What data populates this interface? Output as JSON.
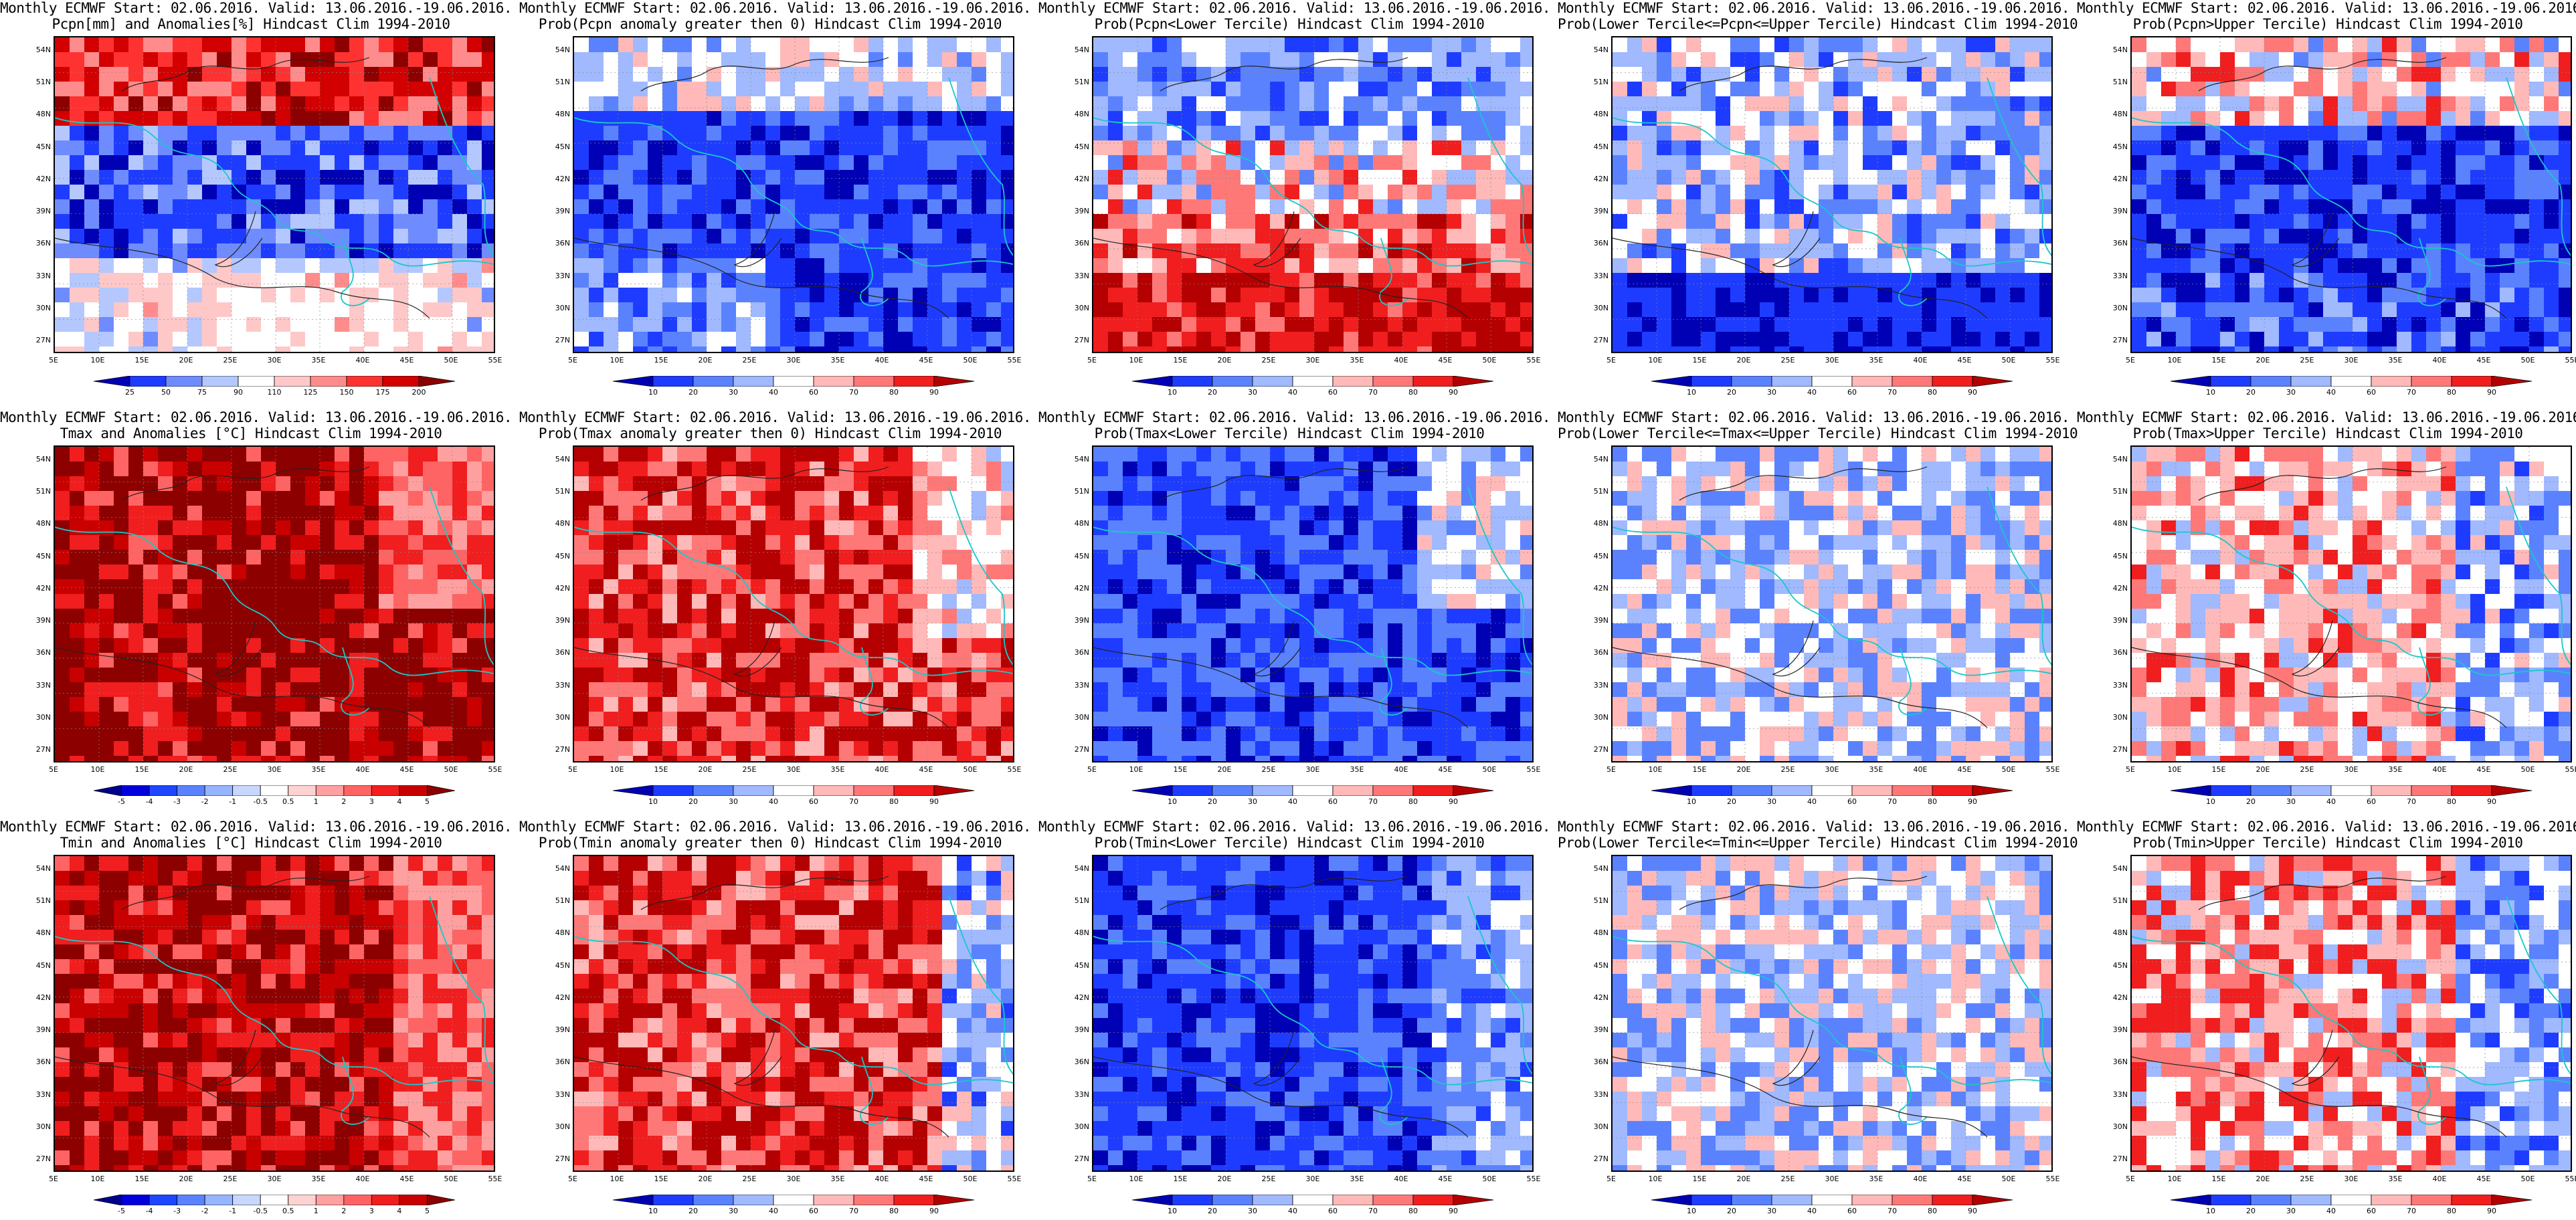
{
  "panels": [
    {
      "title1": "Monthly ECMWF Start: 02.06.2016. Valid: 13.06.2016.-19.06.2016.",
      "title2": "Pcpn[mm] and Anomalies[%] Hindcast Clim 1994-2010",
      "colorbar": "anom_pcpn",
      "pattern": "pcpn_anom"
    },
    {
      "title1": "Monthly ECMWF Start: 02.06.2016. Valid: 13.06.2016.-19.06.2016.",
      "title2": "Prob(Pcpn anomaly greater then 0) Hindcast Clim 1994-2010",
      "colorbar": "prob",
      "pattern": "pcpn_prob_gt0"
    },
    {
      "title1": "Monthly ECMWF Start: 02.06.2016. Valid: 13.06.2016.-19.06.2016.",
      "title2": "Prob(Pcpn<Lower Tercile) Hindcast Clim 1994-2010",
      "colorbar": "prob",
      "pattern": "pcpn_lower"
    },
    {
      "title1": "Monthly ECMWF Start: 02.06.2016. Valid: 13.06.2016.-19.06.2016.",
      "title2": "Prob(Lower Tercile<=Pcpn<=Upper Tercile) Hindcast Clim 1994-2010",
      "colorbar": "prob",
      "pattern": "pcpn_middle"
    },
    {
      "title1": "Monthly ECMWF Start: 02.06.2016. Valid: 13.06.2016.-19.06.2016.",
      "title2": "Prob(Pcpn>Upper Tercile) Hindcast Clim 1994-2010",
      "colorbar": "prob",
      "pattern": "pcpn_upper"
    },
    {
      "title1": "Monthly ECMWF Start: 02.06.2016. Valid: 13.06.2016.-19.06.2016.",
      "title2": "Tmax and Anomalies [°C] Hindcast Clim 1994-2010",
      "colorbar": "anom_temp",
      "pattern": "tmax_anom"
    },
    {
      "title1": "Monthly ECMWF Start: 02.06.2016. Valid: 13.06.2016.-19.06.2016.",
      "title2": "Prob(Tmax anomaly greater then 0) Hindcast Clim 1994-2010",
      "colorbar": "prob",
      "pattern": "tmax_prob_gt0"
    },
    {
      "title1": "Monthly ECMWF Start: 02.06.2016. Valid: 13.06.2016.-19.06.2016.",
      "title2": "Prob(Tmax<Lower Tercile) Hindcast Clim 1994-2010",
      "colorbar": "prob",
      "pattern": "tmax_lower"
    },
    {
      "title1": "Monthly ECMWF Start: 02.06.2016. Valid: 13.06.2016.-19.06.2016.",
      "title2": "Prob(Lower Tercile<=Tmax<=Upper Tercile) Hindcast Clim 1994-2010",
      "colorbar": "prob",
      "pattern": "tmax_middle"
    },
    {
      "title1": "Monthly ECMWF Start: 02.06.2016. Valid: 13.06.2016.-19.06.2016.",
      "title2": "Prob(Tmax>Upper Tercile) Hindcast Clim 1994-2010",
      "colorbar": "prob",
      "pattern": "tmax_upper"
    },
    {
      "title1": "Monthly ECMWF Start: 02.06.2016. Valid: 13.06.2016.-19.06.2016.",
      "title2": "Tmin and Anomalies [°C] Hindcast Clim 1994-2010",
      "colorbar": "anom_temp",
      "pattern": "tmin_anom"
    },
    {
      "title1": "Monthly ECMWF Start: 02.06.2016. Valid: 13.06.2016.-19.06.2016.",
      "title2": "Prob(Tmin anomaly greater then 0) Hindcast Clim 1994-2010",
      "colorbar": "prob",
      "pattern": "tmin_prob_gt0"
    },
    {
      "title1": "Monthly ECMWF Start: 02.06.2016. Valid: 13.06.2016.-19.06.2016.",
      "title2": "Prob(Tmin<Lower Tercile) Hindcast Clim 1994-2010",
      "colorbar": "prob",
      "pattern": "tmin_lower"
    },
    {
      "title1": "Monthly ECMWF Start: 02.06.2016. Valid: 13.06.2016.-19.06.2016.",
      "title2": "Prob(Lower Tercile<=Tmin<=Upper Tercile) Hindcast Clim 1994-2010",
      "colorbar": "prob",
      "pattern": "tmin_middle"
    },
    {
      "title1": "Monthly ECMWF Start: 02.06.2016. Valid: 13.06.2016.-19.06.2016.",
      "title2": "Prob(Tmin>Upper Tercile) Hindcast Clim 1994-2010",
      "colorbar": "prob",
      "pattern": "tmin_upper"
    }
  ],
  "axes": {
    "lat_labels": [
      "54N",
      "51N",
      "48N",
      "45N",
      "42N",
      "39N",
      "36N",
      "33N",
      "30N",
      "27N"
    ],
    "lon_labels": [
      "5E",
      "10E",
      "15E",
      "20E",
      "25E",
      "30E",
      "35E",
      "40E",
      "45E",
      "50E",
      "55E"
    ]
  },
  "colorbars": {
    "anom_pcpn": {
      "labels": [
        "25",
        "50",
        "75",
        "90",
        "110",
        "125",
        "150",
        "175",
        "200"
      ],
      "colors": [
        "#0000b4",
        "#1e3cff",
        "#6e8cff",
        "#b4c8ff",
        "#ffffff",
        "#ffc8c8",
        "#ff8c8c",
        "#ff3232",
        "#d20000",
        "#8c0000"
      ]
    },
    "anom_temp": {
      "labels": [
        "-5",
        "-4",
        "-3",
        "-2",
        "-1",
        "-0.5",
        "0.5",
        "1",
        "2",
        "3",
        "4",
        "5"
      ],
      "colors": [
        "#00008c",
        "#0000dc",
        "#1e46ff",
        "#5a82ff",
        "#96b4ff",
        "#c8d7ff",
        "#ffffff",
        "#ffd2d2",
        "#ffa0a0",
        "#ff6464",
        "#f01e1e",
        "#c80000",
        "#8c0000"
      ]
    },
    "prob": {
      "labels": [
        "10",
        "20",
        "30",
        "40",
        "60",
        "70",
        "80",
        "90"
      ],
      "colors": [
        "#0000b4",
        "#1e3cff",
        "#5a82ff",
        "#a0b9ff",
        "#ffffff",
        "#ffb9b9",
        "#ff7878",
        "#f01e1e",
        "#b40000"
      ]
    }
  }
}
